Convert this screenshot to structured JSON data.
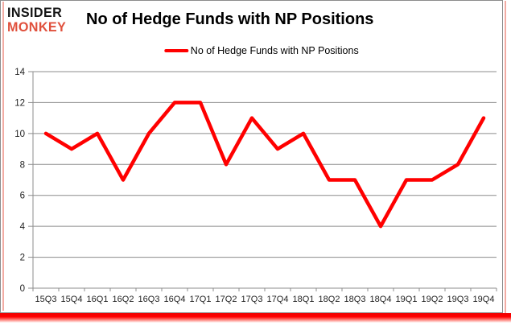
{
  "logo": {
    "line1": "INSIDER",
    "line2": "MONKEY",
    "accent_color": "#e0503c"
  },
  "title": "No of Hedge Funds with NP Positions",
  "legend": {
    "label": "No of Hedge Funds with NP Positions"
  },
  "colors": {
    "series_line": "#ff0000",
    "gridline": "#8c8c8c",
    "axis": "#8c8c8c",
    "tick_label": "#1f1f1f",
    "frame_border": "#8c8c8c",
    "bottom_bar": "#ff0000",
    "side_glow": "#f2aca4"
  },
  "chart_data": {
    "type": "line",
    "title": "No of Hedge Funds with NP Positions",
    "categories": [
      "15Q3",
      "15Q4",
      "16Q1",
      "16Q2",
      "16Q3",
      "16Q4",
      "17Q1",
      "17Q2",
      "17Q3",
      "17Q4",
      "18Q1",
      "18Q2",
      "18Q3",
      "18Q4",
      "19Q1",
      "19Q2",
      "19Q3",
      "19Q4"
    ],
    "series": [
      {
        "name": "No of Hedge Funds with NP Positions",
        "color": "#ff0000",
        "values": [
          10,
          9,
          10,
          7,
          10,
          12,
          12,
          8,
          11,
          9,
          10,
          7,
          7,
          4,
          7,
          7,
          8,
          11
        ]
      }
    ],
    "xlabel": "",
    "ylabel": "",
    "ylim": [
      0,
      14
    ],
    "yticks": [
      0,
      2,
      4,
      6,
      8,
      10,
      12,
      14
    ],
    "grid": true,
    "legend_position": "top"
  }
}
